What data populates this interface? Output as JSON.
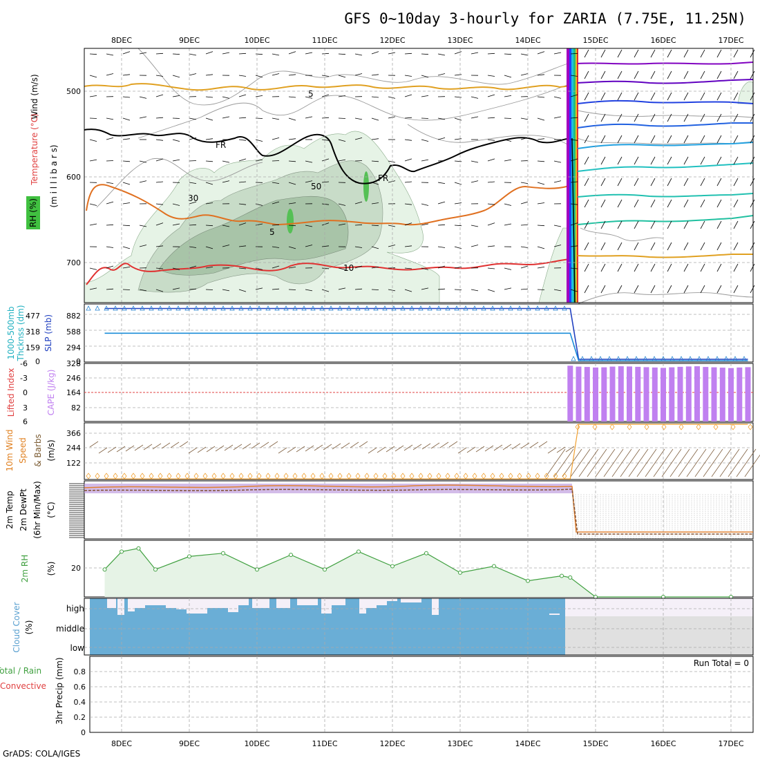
{
  "title": "GFS 0~10day 3-hourly for ZARIA (7.75E, 11.25N)",
  "footer": "GrADS: COLA/IGES",
  "date_labels": [
    "8DEC",
    "9DEC",
    "10DEC",
    "11DEC",
    "12DEC",
    "13DEC",
    "14DEC",
    "15DEC",
    "16DEC",
    "17DEC"
  ],
  "colors": {
    "rh_fill": "#e6f3e6",
    "rh_fill_dark": "#b8d4b8",
    "thickness_line": "#1a8cd8",
    "slp_line": "#2040c0",
    "cape_bar": "#c080f0",
    "wind_speed": "#f0a030",
    "rh2m": "#40a040",
    "cloud": "#6aaed6",
    "lifted_zero": "#e04040"
  },
  "panels": {
    "upper": {
      "ylabel_wind": "Wind (m/s)",
      "ylabel_temp": "Temperature (°C)",
      "ylabel_rh": "RH (%)",
      "ylabel_mb": "(m i l l i b a r s)",
      "yticks": [
        "500",
        "600",
        "700"
      ],
      "contour_labels": [
        "5",
        "FR",
        "FR",
        "10",
        "30",
        "50",
        "5",
        "10"
      ]
    },
    "thickness": {
      "ylabel_a": "1000-500mb",
      "ylabel_b": "Thcknss (dm)",
      "ylabel_c": "SLP (mb)",
      "left_ticks": [
        "477",
        "318",
        "159",
        "0"
      ],
      "right_ticks": [
        "882",
        "588",
        "294",
        "0"
      ]
    },
    "cape": {
      "ylabel_a": "Lifted Index",
      "ylabel_b": "CAPE (J/kg)",
      "left_ticks": [
        "-6",
        "-3",
        "0",
        "3",
        "6"
      ],
      "right_ticks": [
        "328",
        "246",
        "164",
        "82"
      ]
    },
    "wind10": {
      "ylabel_a": "10m Wind",
      "ylabel_b": "Speed",
      "ylabel_c": "& Barbs",
      "ylabel_d": "(m/s)",
      "yticks": [
        "366",
        "244",
        "122"
      ]
    },
    "temp2m": {
      "ylabel_a": "2m Temp",
      "ylabel_b": "2m DewPt",
      "ylabel_c": "(6hr Min/Max)",
      "ylabel_d": "(°C)"
    },
    "rh2m": {
      "ylabel_a": "2m RH",
      "ylabel_b": "(%)",
      "yticks": [
        "20"
      ]
    },
    "cloud": {
      "ylabel_a": "Cloud Cover",
      "ylabel_b": "(%)",
      "levels": [
        "high",
        "middle",
        "low"
      ]
    },
    "precip": {
      "ylabel_a": "Total / Rain",
      "ylabel_b": "Convective",
      "ylabel_c": "3hr Precip (mm)",
      "yticks": [
        "0.8",
        "0.6",
        "0.4",
        "0.2",
        "0"
      ],
      "run_total": "Run Total = 0"
    }
  },
  "chart_data": [
    {
      "type": "line",
      "title": "1000-500mb Thickness / SLP",
      "x": [
        "7DEC18",
        "8DEC",
        "9DEC",
        "10DEC",
        "11DEC",
        "12DEC",
        "13DEC",
        "14DEC",
        "14DEC12",
        "14DEC15",
        "14DEC18",
        "15DEC",
        "16DEC",
        "17DEC",
        "17DEC06"
      ],
      "series": [
        {
          "name": "SLP (mb)",
          "values": [
            882,
            882,
            882,
            882,
            882,
            882,
            882,
            882,
            882,
            882,
            0,
            0,
            0,
            0,
            0
          ]
        },
        {
          "name": "1000-500mb Thcknss (dm)",
          "values": [
            477,
            477,
            477,
            477,
            477,
            477,
            477,
            477,
            477,
            477,
            0,
            0,
            0,
            0,
            0
          ]
        }
      ],
      "ylim": [
        0,
        960
      ]
    },
    {
      "type": "bar",
      "title": "CAPE (J/kg)",
      "x": [
        "14DEC15",
        "14DEC18",
        "14DEC21",
        "15DEC00",
        "15DEC03",
        "15DEC06",
        "15DEC09",
        "15DEC12",
        "15DEC15",
        "15DEC18",
        "15DEC21",
        "16DEC00",
        "16DEC03",
        "16DEC06",
        "16DEC09",
        "16DEC12",
        "16DEC15",
        "16DEC18",
        "16DEC21",
        "17DEC00",
        "17DEC03",
        "17DEC06"
      ],
      "values": [
        315,
        310,
        308,
        305,
        306,
        310,
        312,
        311,
        309,
        307,
        305,
        303,
        306,
        309,
        311,
        312,
        308,
        306,
        304,
        302,
        305,
        307
      ],
      "ylim": [
        0,
        328
      ]
    },
    {
      "type": "line",
      "title": "10m Wind Speed (m/s)",
      "x": [
        "7DEC18",
        "8DEC",
        "9DEC",
        "10DEC",
        "11DEC",
        "12DEC",
        "13DEC",
        "14DEC",
        "14DEC12",
        "14DEC15",
        "14DEC18",
        "15DEC",
        "16DEC",
        "17DEC",
        "17DEC06"
      ],
      "values": [
        4,
        4,
        4,
        4,
        4,
        4,
        4,
        4,
        4,
        4,
        380,
        380,
        380,
        380,
        380
      ],
      "ylim": [
        0,
        390
      ]
    },
    {
      "type": "line",
      "title": "2m RH (%)",
      "x": [
        "7DEC18",
        "8DEC",
        "8DEC06",
        "8DEC12",
        "9DEC",
        "9DEC12",
        "10DEC",
        "10DEC12",
        "11DEC",
        "11DEC12",
        "12DEC",
        "12DEC12",
        "13DEC",
        "13DEC12",
        "14DEC",
        "14DEC12",
        "14DEC15",
        "15DEC",
        "16DEC",
        "17DEC"
      ],
      "values": [
        17,
        28,
        30,
        17,
        25,
        27,
        17,
        26,
        17,
        28,
        19,
        27,
        15,
        19,
        10,
        13,
        12,
        0,
        0,
        0
      ],
      "ylim": [
        0,
        35
      ]
    }
  ]
}
